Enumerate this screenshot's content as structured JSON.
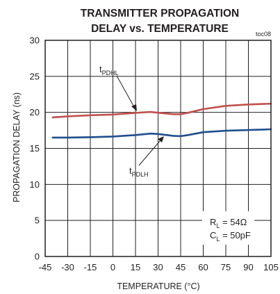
{
  "chart_data": {
    "type": "line",
    "title_lines": [
      "TRANSMITTER PROPAGATION",
      "DELAY vs. TEMPERATURE"
    ],
    "tag": "toc08",
    "xlabel": "TEMPERATURE (°C)",
    "ylabel": "PROPAGATION DELAY (ns)",
    "xlim": [
      -45,
      105
    ],
    "ylim": [
      0,
      30
    ],
    "xticks": [
      -45,
      -30,
      -15,
      0,
      15,
      30,
      45,
      60,
      75,
      90,
      105
    ],
    "yticks": [
      0,
      5,
      10,
      15,
      20,
      25,
      30
    ],
    "grid": true,
    "series": [
      {
        "name": "tPDHL",
        "label_main": "t",
        "label_sub": "PDHL",
        "color": "#c0504d",
        "x": [
          -40,
          -30,
          -15,
          0,
          10,
          20,
          25,
          30,
          40,
          45,
          50,
          60,
          75,
          90,
          105
        ],
        "y": [
          19.3,
          19.45,
          19.6,
          19.7,
          19.85,
          20.0,
          20.05,
          19.95,
          19.75,
          19.75,
          19.95,
          20.45,
          20.9,
          21.1,
          21.2
        ]
      },
      {
        "name": "tPDLH",
        "label_main": "t",
        "label_sub": "PDLH",
        "color": "#1f4e8c",
        "x": [
          -40,
          -30,
          -15,
          0,
          15,
          25,
          30,
          40,
          45,
          50,
          60,
          75,
          90,
          105
        ],
        "y": [
          16.5,
          16.5,
          16.55,
          16.65,
          16.85,
          17.05,
          17.0,
          16.75,
          16.7,
          16.85,
          17.25,
          17.45,
          17.55,
          17.65
        ]
      }
    ],
    "conditions": [
      {
        "main": "R",
        "sub": "L",
        "rest": " = 54Ω"
      },
      {
        "main": "C",
        "sub": "L",
        "rest": " = 50pF"
      }
    ]
  }
}
